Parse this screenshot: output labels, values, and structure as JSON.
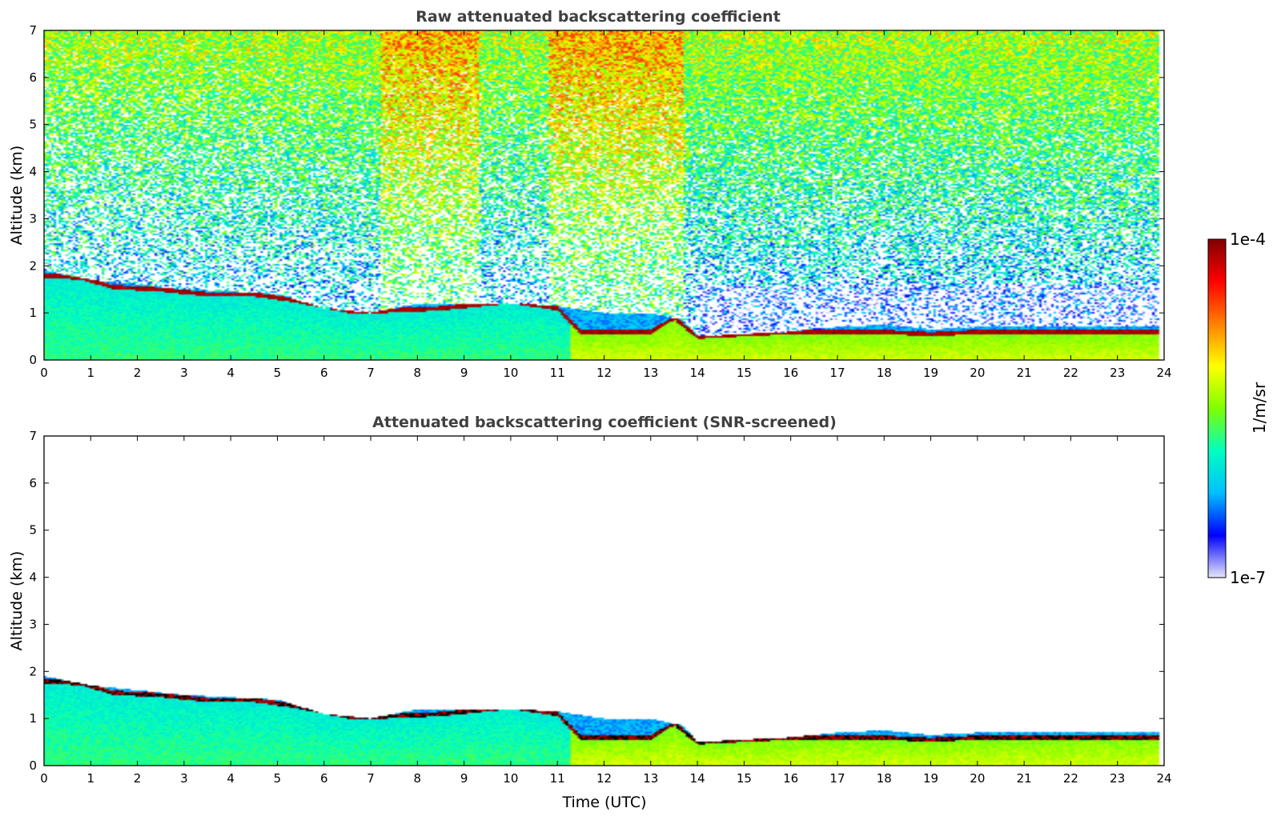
{
  "chart_data": [
    {
      "type": "heatmap",
      "title": "Raw attenuated backscattering coefficient",
      "xlabel": "",
      "ylabel": "Altitude (km)",
      "xlim": [
        0,
        24
      ],
      "ylim": [
        0,
        7
      ],
      "xticks": [
        0,
        1,
        2,
        3,
        4,
        5,
        6,
        7,
        8,
        9,
        10,
        11,
        12,
        13,
        14,
        15,
        16,
        17,
        18,
        19,
        20,
        21,
        22,
        23,
        24
      ],
      "yticks": [
        0,
        1,
        2,
        3,
        4,
        5,
        6,
        7
      ],
      "data_end_hour": 23.9,
      "cloud_base_km": [
        [
          0,
          1.75
        ],
        [
          0.8,
          1.7
        ],
        [
          1.5,
          1.5
        ],
        [
          2.5,
          1.45
        ],
        [
          3.5,
          1.35
        ],
        [
          4.5,
          1.35
        ],
        [
          5.5,
          1.2
        ],
        [
          6.5,
          1.0
        ],
        [
          7.3,
          1.0
        ],
        [
          8.5,
          1.05
        ],
        [
          9,
          1.1
        ],
        [
          10,
          1.2
        ],
        [
          11,
          1.05
        ],
        [
          11.5,
          0.55
        ],
        [
          13,
          0.55
        ],
        [
          13.5,
          0.85
        ],
        [
          14,
          0.45
        ],
        [
          15,
          0.5
        ],
        [
          16,
          0.55
        ],
        [
          17,
          0.55
        ],
        [
          18,
          0.55
        ],
        [
          19,
          0.5
        ],
        [
          20,
          0.55
        ],
        [
          21,
          0.55
        ],
        [
          22,
          0.55
        ],
        [
          23,
          0.55
        ],
        [
          23.9,
          0.55
        ]
      ],
      "aerosol_top_km": [
        [
          0,
          1.9
        ],
        [
          1,
          1.7
        ],
        [
          2,
          1.6
        ],
        [
          3,
          1.5
        ],
        [
          4,
          1.45
        ],
        [
          5,
          1.4
        ],
        [
          6,
          1.1
        ],
        [
          7,
          1.0
        ],
        [
          8,
          1.2
        ],
        [
          9,
          1.2
        ],
        [
          10,
          1.2
        ],
        [
          11,
          1.15
        ],
        [
          12,
          1.0
        ],
        [
          13,
          1.0
        ],
        [
          13.7,
          0.85
        ],
        [
          14,
          0.5
        ],
        [
          16,
          0.6
        ],
        [
          17,
          0.7
        ],
        [
          18,
          0.75
        ],
        [
          19,
          0.65
        ],
        [
          20,
          0.7
        ],
        [
          22,
          0.7
        ],
        [
          23.9,
          0.7
        ]
      ],
      "noise": true
    },
    {
      "type": "heatmap",
      "title": "Attenuated backscattering coefficient (SNR-screened)",
      "xlabel": "Time (UTC)",
      "ylabel": "Altitude (km)",
      "xlim": [
        0,
        24
      ],
      "ylim": [
        0,
        7
      ],
      "xticks": [
        0,
        1,
        2,
        3,
        4,
        5,
        6,
        7,
        8,
        9,
        10,
        11,
        12,
        13,
        14,
        15,
        16,
        17,
        18,
        19,
        20,
        21,
        22,
        23,
        24
      ],
      "yticks": [
        0,
        1,
        2,
        3,
        4,
        5,
        6,
        7
      ],
      "data_end_hour": 23.9,
      "cloud_base_km": [
        [
          0,
          1.75
        ],
        [
          0.8,
          1.7
        ],
        [
          1.5,
          1.5
        ],
        [
          2.5,
          1.45
        ],
        [
          3.5,
          1.35
        ],
        [
          4.5,
          1.35
        ],
        [
          5.5,
          1.2
        ],
        [
          6.5,
          1.0
        ],
        [
          7.3,
          1.0
        ],
        [
          8.5,
          1.05
        ],
        [
          9,
          1.1
        ],
        [
          10,
          1.2
        ],
        [
          11,
          1.05
        ],
        [
          11.5,
          0.55
        ],
        [
          13,
          0.55
        ],
        [
          13.5,
          0.85
        ],
        [
          14,
          0.45
        ],
        [
          15,
          0.5
        ],
        [
          16,
          0.55
        ],
        [
          17,
          0.55
        ],
        [
          18,
          0.55
        ],
        [
          19,
          0.5
        ],
        [
          20,
          0.55
        ],
        [
          21,
          0.55
        ],
        [
          22,
          0.55
        ],
        [
          23,
          0.55
        ],
        [
          23.9,
          0.55
        ]
      ],
      "aerosol_top_km": [
        [
          0,
          1.9
        ],
        [
          1,
          1.7
        ],
        [
          2,
          1.6
        ],
        [
          3,
          1.5
        ],
        [
          4,
          1.45
        ],
        [
          5,
          1.4
        ],
        [
          6,
          1.1
        ],
        [
          7,
          1.0
        ],
        [
          8,
          1.2
        ],
        [
          9,
          1.2
        ],
        [
          10,
          1.2
        ],
        [
          11,
          1.15
        ],
        [
          12,
          1.0
        ],
        [
          13,
          1.0
        ],
        [
          13.7,
          0.85
        ],
        [
          14,
          0.5
        ],
        [
          16,
          0.6
        ],
        [
          17,
          0.7
        ],
        [
          18,
          0.75
        ],
        [
          19,
          0.65
        ],
        [
          20,
          0.7
        ],
        [
          22,
          0.7
        ],
        [
          23.9,
          0.7
        ]
      ],
      "noise": false
    }
  ],
  "colorbar": {
    "max_label": "1e-4",
    "min_label": "1e-7",
    "unit_label": "1/m/sr",
    "colors": [
      "#e6e6fa",
      "#0000ff",
      "#00bfff",
      "#00ffc0",
      "#7fff00",
      "#ffff00",
      "#ff8000",
      "#ff0000",
      "#800000"
    ]
  }
}
